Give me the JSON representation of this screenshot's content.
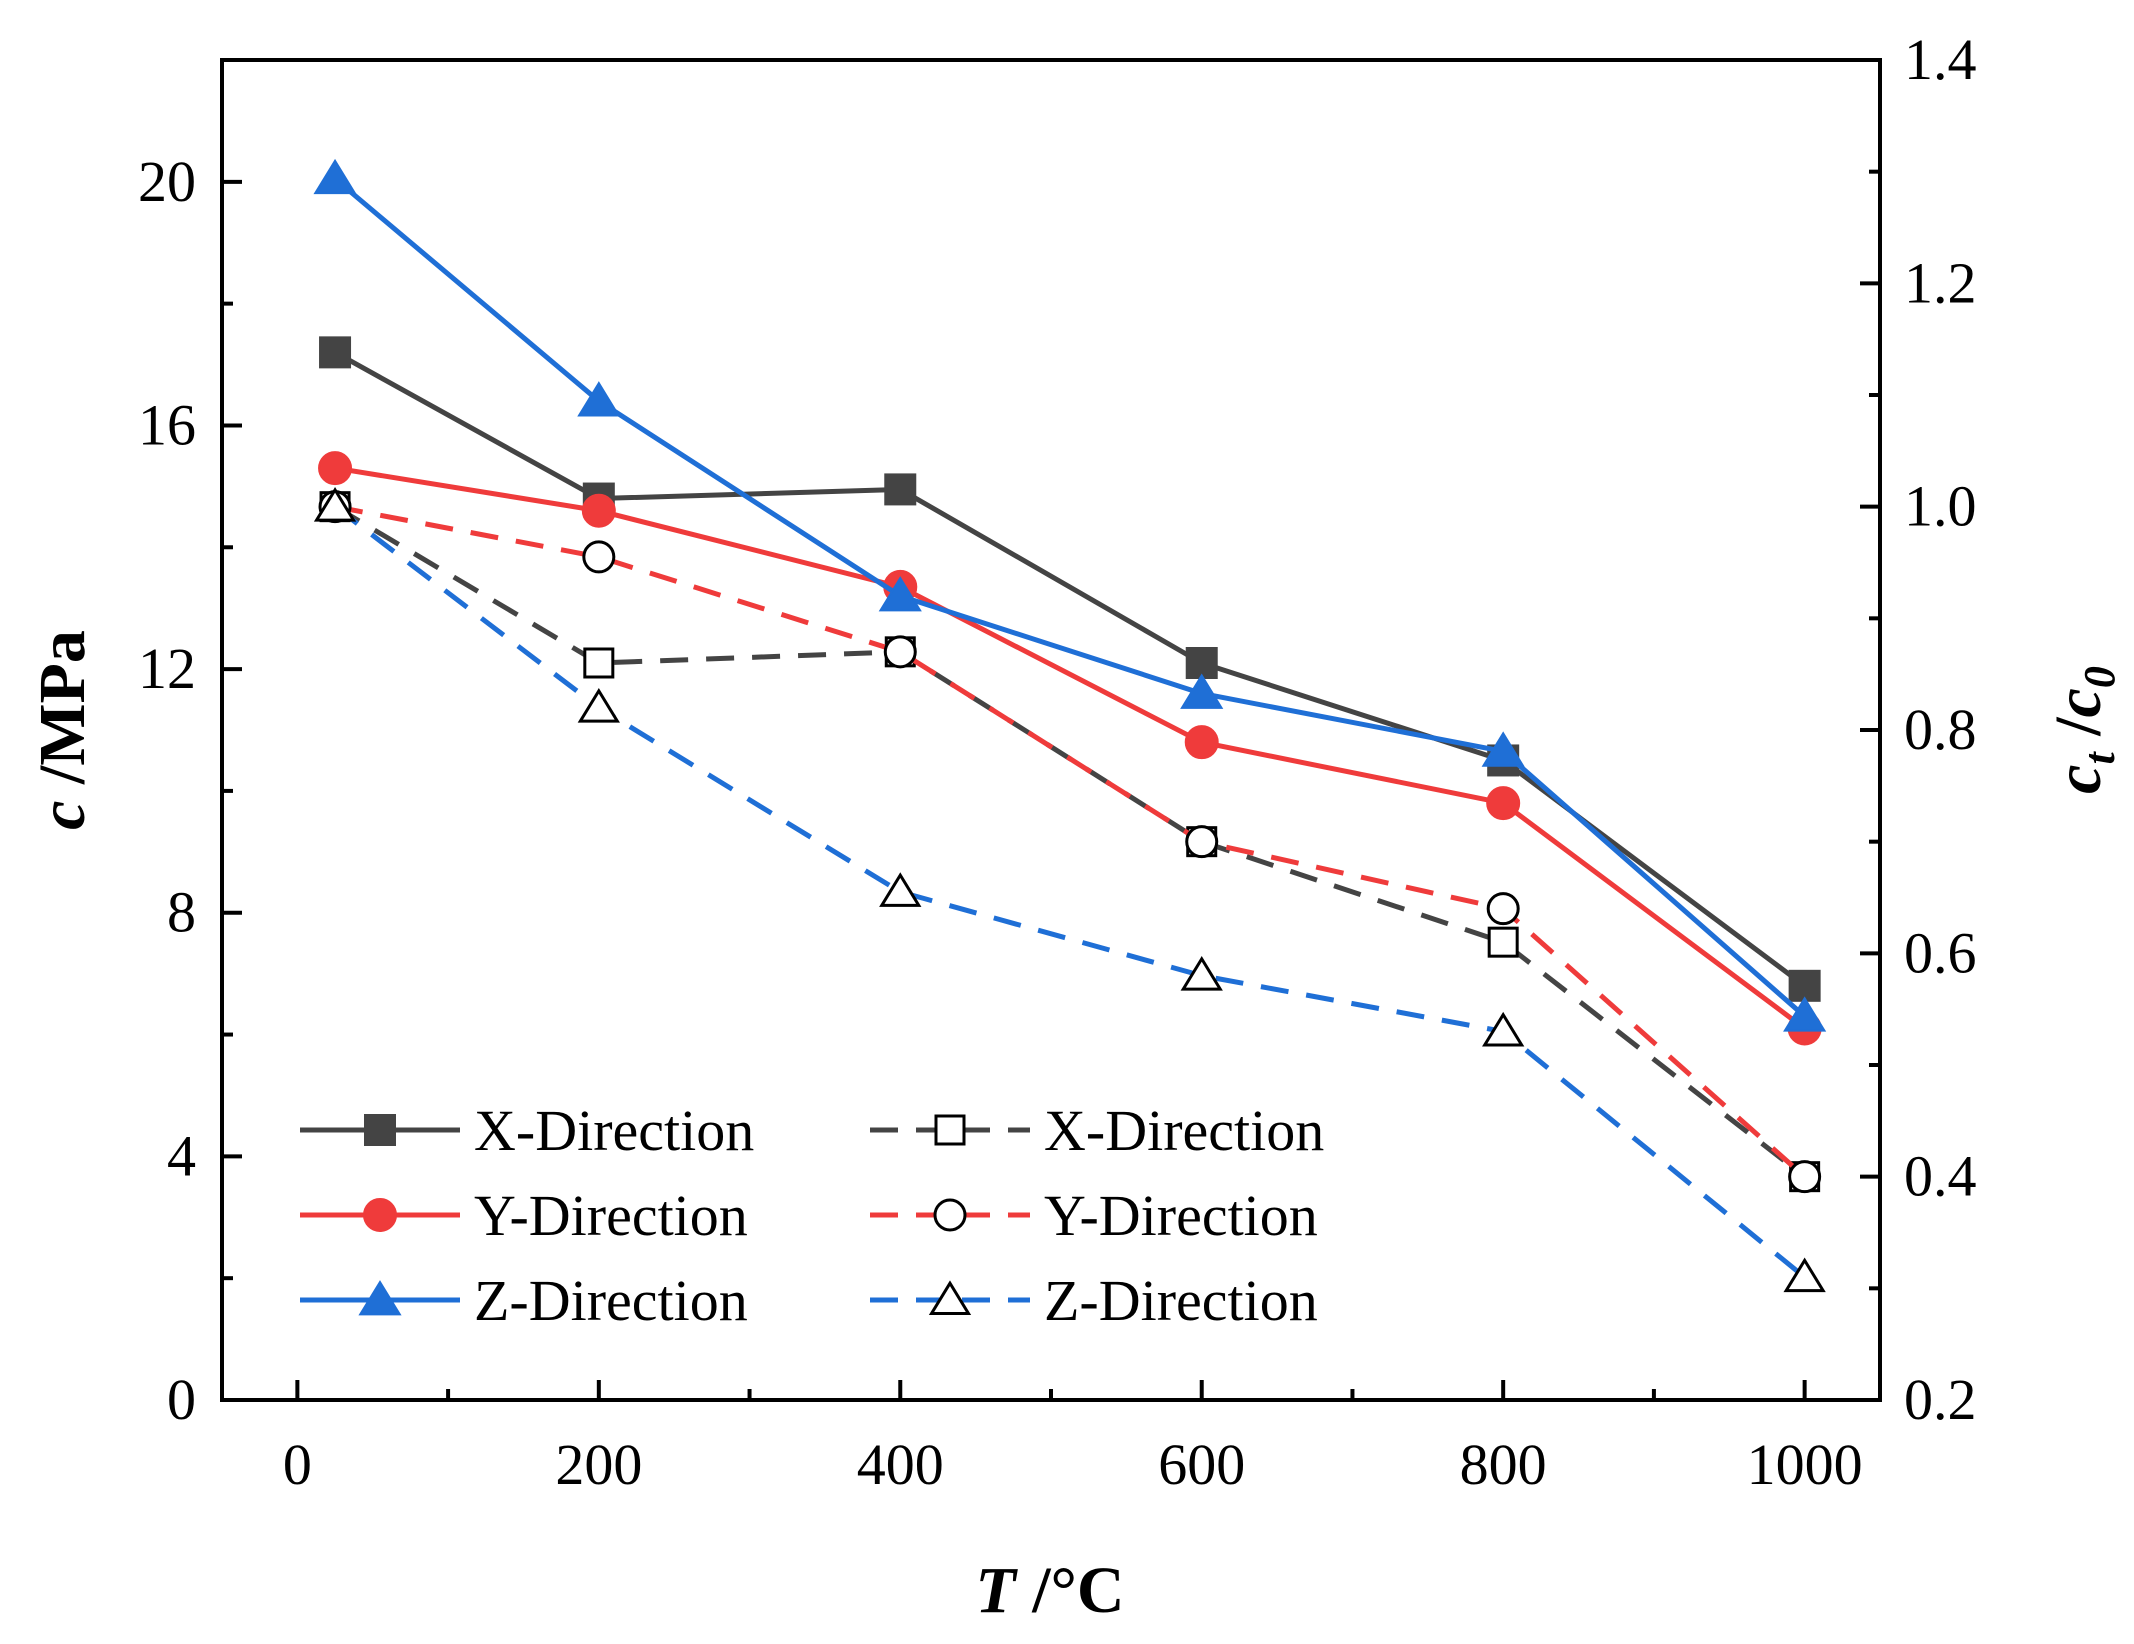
{
  "chart_data": {
    "type": "line",
    "title": "",
    "x": [
      25,
      200,
      400,
      600,
      800,
      1000
    ],
    "xlabel": {
      "var": "T",
      "unit": " /°C"
    },
    "ylabel_left": {
      "var": "c",
      "unit": " /MPa"
    },
    "ylabel_right": {
      "var": "c",
      "sub1": "t",
      "sep": " /",
      "var2": "c",
      "sub2": "0"
    },
    "xlim": [
      -50,
      1050
    ],
    "ylim_left": [
      0,
      22
    ],
    "ylim_right": [
      0.2,
      1.4
    ],
    "x_ticks": [
      "0",
      "200",
      "400",
      "600",
      "800",
      "1000"
    ],
    "y_left_ticks": [
      "0",
      "4",
      "8",
      "12",
      "16",
      "20"
    ],
    "y_right_ticks": [
      "0.2",
      "0.4",
      "0.6",
      "0.8",
      "1.0",
      "1.2",
      "1.4"
    ],
    "grid": false,
    "legend_position": "bottom-left",
    "series": [
      {
        "name": "X-Direction",
        "axis": "left",
        "marker": "square",
        "filled": true,
        "dashed": false,
        "color": "#444444",
        "values": [
          17.2,
          14.8,
          14.95,
          12.1,
          10.5,
          6.8
        ]
      },
      {
        "name": "Y-Direction",
        "axis": "left",
        "marker": "circle",
        "filled": true,
        "dashed": false,
        "color": "#ef3b3b",
        "values": [
          15.3,
          14.6,
          13.35,
          10.8,
          9.8,
          6.1
        ]
      },
      {
        "name": "Z-Direction",
        "axis": "left",
        "marker": "triangle",
        "filled": true,
        "dashed": false,
        "color": "#1f6fd6",
        "values": [
          20.05,
          16.4,
          13.2,
          11.6,
          10.65,
          6.3
        ]
      },
      {
        "name": "X-Direction",
        "axis": "right",
        "marker": "square",
        "filled": false,
        "dashed": true,
        "color": "#444444",
        "values": [
          1.0,
          0.86,
          0.87,
          0.7,
          0.61,
          0.4
        ]
      },
      {
        "name": "Y-Direction",
        "axis": "right",
        "marker": "circle",
        "filled": false,
        "dashed": true,
        "color": "#ef3b3b",
        "values": [
          1.0,
          0.955,
          0.87,
          0.7,
          0.64,
          0.4
        ]
      },
      {
        "name": "Z-Direction",
        "axis": "right",
        "marker": "triangle",
        "filled": false,
        "dashed": true,
        "color": "#1f6fd6",
        "values": [
          1.0,
          0.82,
          0.655,
          0.58,
          0.53,
          0.31
        ]
      }
    ]
  }
}
